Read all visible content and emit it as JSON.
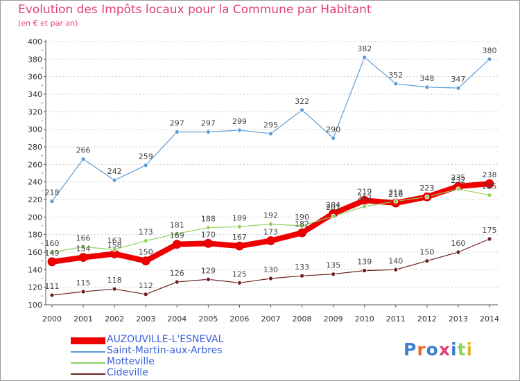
{
  "title": "Evolution des Impôts locaux pour la Commune par Habitant",
  "subtitle": "(en € et par an)",
  "logo": "Proxiti",
  "colors": {
    "title": "#e0407a",
    "legend_text": "#3a5fd8",
    "grid": "#cccccc",
    "axis": "#555555"
  },
  "chart_data": {
    "type": "line",
    "title": "Evolution des Impôts locaux pour la Commune par Habitant",
    "subtitle": "(en € et par an)",
    "xlabel": "",
    "ylabel": "",
    "x": [
      "2000",
      "2001",
      "2002",
      "2003",
      "2004",
      "2005",
      "2006",
      "2007",
      "2008",
      "2009",
      "2010",
      "2011",
      "2012",
      "2013",
      "2014"
    ],
    "ylim": [
      100,
      400
    ],
    "yticks": [
      100,
      120,
      140,
      160,
      180,
      200,
      220,
      240,
      260,
      280,
      300,
      320,
      340,
      360,
      380,
      400
    ],
    "grid": true,
    "series": [
      {
        "name": "AUZOUVILLE-L'ESNEVAL",
        "color": "#ee0000",
        "width": 8,
        "labels": true,
        "values": [
          149,
          154,
          158,
          150,
          169,
          170,
          167,
          173,
          182,
          204,
          219,
          216,
          223,
          235,
          238
        ]
      },
      {
        "name": "Saint-Martin-aux-Arbres",
        "color": "#5b9bd5",
        "width": 1.2,
        "labels": true,
        "values": [
          218,
          266,
          242,
          259,
          297,
          297,
          299,
          295,
          322,
          290,
          382,
          352,
          348,
          347,
          380
        ]
      },
      {
        "name": "Motteville",
        "color": "#8dd35f",
        "width": 1.2,
        "labels": true,
        "values": [
          160,
          166,
          163,
          173,
          181,
          188,
          189,
          192,
          190,
          201,
          212,
          218,
          223,
          232,
          225
        ]
      },
      {
        "name": "Cideville",
        "color": "#6b1d1d",
        "width": 1.2,
        "labels": true,
        "values": [
          111,
          115,
          118,
          112,
          126,
          129,
          125,
          130,
          133,
          135,
          139,
          140,
          150,
          160,
          175
        ]
      }
    ],
    "legend": "bottom-left"
  }
}
